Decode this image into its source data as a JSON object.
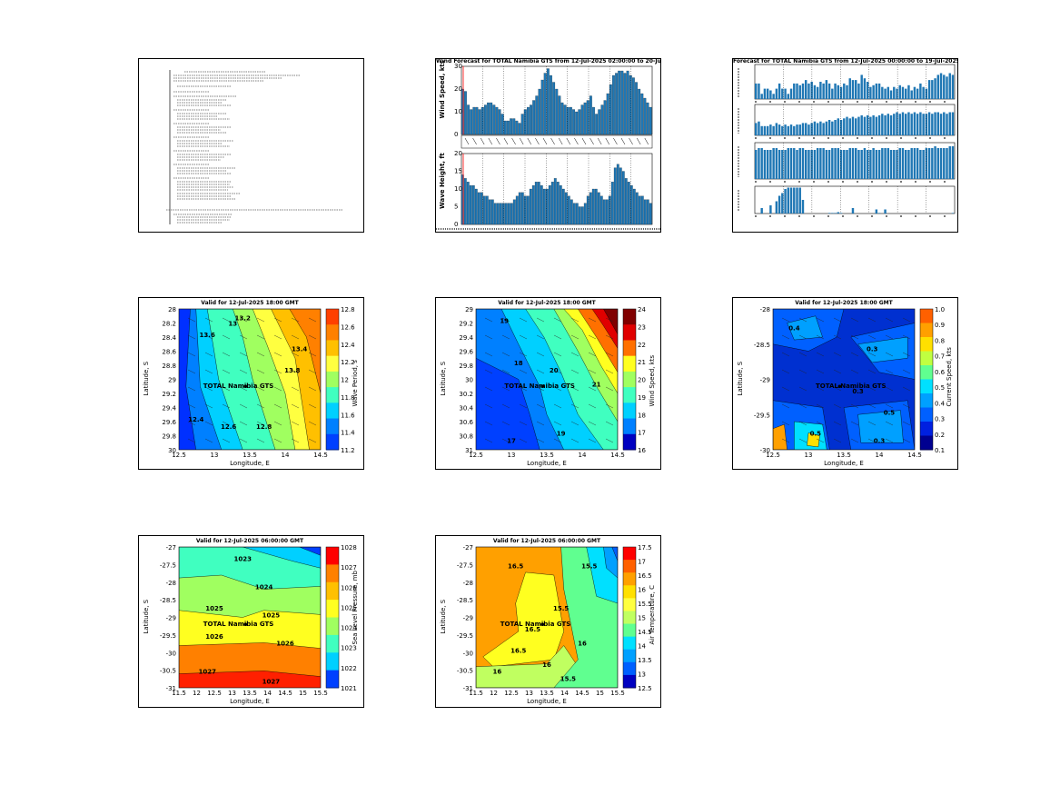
{
  "site_label": "TOTAL Namibia GTS",
  "panels": [
    {
      "id": "text_report",
      "type": "text"
    },
    {
      "id": "wind_wave",
      "title": "Wind Forecast for TOTAL Namibia GTS from 12-Jul-2025 02:00:00 to 20-Jul",
      "ylabel_top": "Wind Speed, kts",
      "ylabel_bottom": "Wave Height, ft"
    },
    {
      "id": "met_bars",
      "title": "Forecast for TOTAL Namibia GTS from 12-Jul-2025 00:00:00 to 19-Jul-2025 0"
    },
    {
      "id": "map_sst",
      "title": "Valid for 12-Jul-2025 18:00 GMT",
      "ylabel": "Latitude, S",
      "xlabel": "Longitude, E",
      "cbar_label": "Wave Period, s",
      "cbar_ticks": [
        "12.8",
        "12.6",
        "12.4",
        "12.2",
        "12",
        "11.8",
        "11.6",
        "11.4",
        "11.2"
      ],
      "xticks": [
        "12.5",
        "13",
        "13.5",
        "14",
        "14.5"
      ]
    },
    {
      "id": "map_wind",
      "title": "Valid for 12-Jul-2025 18:00 GMT",
      "ylabel": "Latitude, S",
      "xlabel": "Longitude, E",
      "cbar_label": "Wind Speed, kts",
      "cbar_ticks": [
        "24",
        "23",
        "22",
        "21",
        "20",
        "19",
        "18",
        "17",
        "16"
      ],
      "xticks": [
        "12.5",
        "13",
        "13.5",
        "14",
        "14.5"
      ]
    },
    {
      "id": "map_current",
      "title": "Valid for 12-Jul-2025 18:00 GMT",
      "ylabel": "Latitude, S",
      "xlabel": "Longitude, E",
      "cbar_label": "Current Speed, kts",
      "cbar_ticks": [
        "1.0",
        "0.9",
        "0.8",
        "0.7",
        "0.6",
        "0.5",
        "0.4",
        "0.3",
        "0.2",
        "0.1"
      ],
      "xticks": [
        "12.5",
        "13",
        "13.5",
        "14",
        "14.5"
      ]
    },
    {
      "id": "map_pressure",
      "title": "Valid for 12-Jul-2025 06:00:00 GMT",
      "ylabel": "Latitude, S",
      "xlabel": "Longitude, E",
      "cbar_label": "Sea Level Pressure, mb",
      "cbar_ticks": [
        "1028",
        "1027",
        "1026",
        "1025",
        "1024",
        "1023",
        "1022",
        "1021"
      ],
      "contour_labels": [
        "1023",
        "1024",
        "1025",
        "1025",
        "1026",
        "1026",
        "1027",
        "1027"
      ],
      "xticks": [
        "11.5",
        "12",
        "12.5",
        "13",
        "13.5",
        "14",
        "14.5",
        "15",
        "15.5"
      ],
      "yticks": [
        "-27",
        "-27.5",
        "-28",
        "-28.5",
        "-29",
        "-29.5",
        "-30",
        "-30.5",
        "-31"
      ]
    },
    {
      "id": "map_airtemp",
      "title": "Valid for 12-Jul-2025 06:00:00 GMT",
      "ylabel": "Latitude, S",
      "xlabel": "Longitude, E",
      "cbar_label": "Air Temperature, C",
      "cbar_ticks": [
        "17.5",
        "17",
        "16.5",
        "16",
        "15.5",
        "15",
        "14.5",
        "14",
        "13.5",
        "13",
        "12.5"
      ],
      "contour_labels": [
        "16.5",
        "16.5",
        "16",
        "15.5",
        "15.5",
        "16",
        "16.5",
        "16",
        "15.5"
      ],
      "xticks": [
        "11.5",
        "12",
        "12.5",
        "13",
        "13.5",
        "14",
        "14.5",
        "15",
        "15.5"
      ],
      "yticks": [
        "-27",
        "-27.5",
        "-28",
        "-28.5",
        "-29",
        "-29.5",
        "-30",
        "-30.5",
        "-31"
      ]
    }
  ],
  "chart_data": [
    {
      "type": "bar",
      "title": "Wind Forecast for TOTAL Namibia GTS from 12-Jul-2025 02:00:00 to 20-Jul",
      "ylabel": "Wind Speed, kts",
      "ylim": [
        0,
        30
      ],
      "values": [
        20,
        19,
        13,
        11,
        12,
        12,
        11,
        12,
        13,
        14,
        14,
        13,
        12,
        11,
        9,
        6,
        6,
        7,
        7,
        6,
        5,
        9,
        11,
        12,
        13,
        15,
        17,
        20,
        24,
        27,
        29,
        26,
        23,
        20,
        17,
        14,
        13,
        12,
        12,
        11,
        10,
        11,
        13,
        14,
        15,
        17,
        12,
        9,
        11,
        13,
        15,
        18,
        22,
        26,
        27,
        28,
        28,
        27,
        28,
        26,
        25,
        23,
        20,
        18,
        16,
        14,
        12
      ]
    },
    {
      "type": "bar",
      "ylabel": "Wave Height, ft",
      "ylim": [
        0,
        20
      ],
      "values": [
        14,
        13,
        12,
        11,
        11,
        10,
        9,
        9,
        8,
        8,
        7,
        7,
        6,
        6,
        6,
        6,
        6,
        6,
        6,
        7,
        8,
        9,
        9,
        8,
        8,
        10,
        11,
        12,
        12,
        11,
        10,
        10,
        11,
        12,
        13,
        12,
        11,
        10,
        9,
        8,
        7,
        6,
        6,
        5,
        5,
        6,
        8,
        9,
        10,
        10,
        9,
        8,
        7,
        7,
        8,
        12,
        16,
        17,
        16,
        15,
        13,
        12,
        11,
        10,
        9,
        8,
        8,
        7,
        7,
        6
      ]
    },
    {
      "type": "bar",
      "title": "Forecast for TOTAL Namibia GTS from 12-Jul-2025 00:00:00 to 19-Jul-2025 0",
      "series": [
        {
          "values": [
            0.45,
            0.45,
            0.15,
            0.3,
            0.3,
            0.25,
            0.15,
            0.3,
            0.45,
            0.3,
            0.3,
            0.15,
            0.3,
            0.45,
            0.45,
            0.4,
            0.45,
            0.55,
            0.45,
            0.5,
            0.4,
            0.35,
            0.5,
            0.45,
            0.55,
            0.45,
            0.3,
            0.45,
            0.4,
            0.35,
            0.45,
            0.4,
            0.6,
            0.55,
            0.55,
            0.45,
            0.7,
            0.6,
            0.5,
            0.35,
            0.4,
            0.45,
            0.45,
            0.35,
            0.3,
            0.35,
            0.25,
            0.35,
            0.3,
            0.4,
            0.35,
            0.3,
            0.4,
            0.25,
            0.35,
            0.3,
            0.45,
            0.35,
            0.3,
            0.55,
            0.55,
            0.6,
            0.7,
            0.75,
            0.7,
            0.65,
            0.75,
            0.7
          ]
        },
        {
          "values": [
            0.4,
            0.45,
            0.3,
            0.3,
            0.3,
            0.35,
            0.3,
            0.4,
            0.35,
            0.3,
            0.35,
            0.3,
            0.35,
            0.3,
            0.35,
            0.35,
            0.4,
            0.4,
            0.35,
            0.4,
            0.45,
            0.4,
            0.45,
            0.4,
            0.45,
            0.5,
            0.45,
            0.5,
            0.55,
            0.5,
            0.55,
            0.6,
            0.55,
            0.6,
            0.55,
            0.6,
            0.65,
            0.6,
            0.65,
            0.6,
            0.65,
            0.6,
            0.65,
            0.7,
            0.65,
            0.7,
            0.65,
            0.7,
            0.75,
            0.7,
            0.75,
            0.7,
            0.75,
            0.7,
            0.75,
            0.7,
            0.75,
            0.7,
            0.7,
            0.75,
            0.7,
            0.75,
            0.75,
            0.7,
            0.75,
            0.7,
            0.75,
            0.75
          ]
        },
        {
          "values": [
            0.8,
            0.85,
            0.85,
            0.8,
            0.8,
            0.8,
            0.85,
            0.85,
            0.8,
            0.8,
            0.8,
            0.85,
            0.85,
            0.85,
            0.8,
            0.85,
            0.85,
            0.8,
            0.8,
            0.8,
            0.8,
            0.85,
            0.85,
            0.85,
            0.8,
            0.8,
            0.85,
            0.85,
            0.85,
            0.8,
            0.8,
            0.8,
            0.85,
            0.85,
            0.85,
            0.8,
            0.8,
            0.85,
            0.8,
            0.8,
            0.85,
            0.8,
            0.8,
            0.85,
            0.85,
            0.85,
            0.8,
            0.8,
            0.8,
            0.85,
            0.85,
            0.8,
            0.8,
            0.85,
            0.85,
            0.85,
            0.8,
            0.8,
            0.85,
            0.85,
            0.85,
            0.9,
            0.85,
            0.85,
            0.85,
            0.85,
            0.9,
            0.9
          ]
        },
        {
          "values": [
            0,
            0,
            0.2,
            0,
            0,
            0.3,
            0,
            0.45,
            0.65,
            0.75,
            0.9,
            0.95,
            0.95,
            0.95,
            0.95,
            0.95,
            0.5,
            0,
            0,
            0,
            0,
            0,
            0,
            0,
            0,
            0.02,
            0.02,
            0.02,
            0.05,
            0.02,
            0,
            0,
            0,
            0.2,
            0,
            0,
            0,
            0,
            0,
            0,
            0,
            0.15,
            0.02,
            0,
            0.15,
            0,
            0,
            0,
            0,
            0,
            0,
            0,
            0,
            0,
            0,
            0,
            0,
            0,
            0,
            0,
            0,
            0,
            0,
            0,
            0,
            0,
            0,
            0.02
          ]
        }
      ]
    }
  ]
}
